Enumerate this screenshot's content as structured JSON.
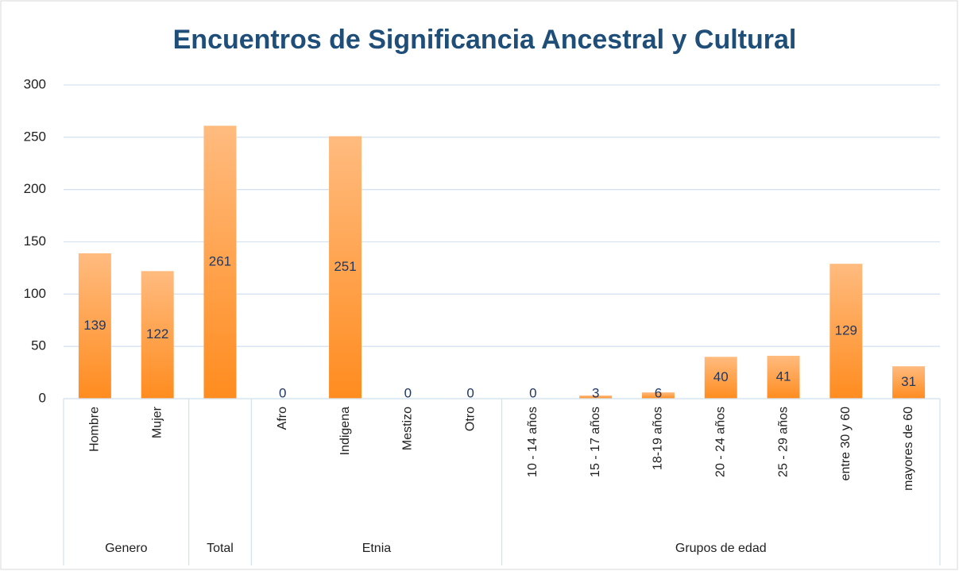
{
  "chart_data": {
    "type": "bar",
    "title": "Encuentros de Significancia Ancestral y Cultural",
    "categories": [
      "Hombre",
      "Mujer",
      null,
      "Afro",
      "Indigena",
      "Mestizo",
      "Otro",
      "10 - 14 años",
      "15 - 17 años",
      "18-19 años",
      "20 - 24 años",
      "25 - 29 años",
      "entre 30 y 60",
      "mayores de 60"
    ],
    "values": [
      139,
      122,
      261,
      0,
      251,
      0,
      0,
      0,
      3,
      6,
      40,
      41,
      129,
      31
    ],
    "groups": [
      {
        "label": "Genero",
        "size": 2
      },
      {
        "label": "Total",
        "size": 1
      },
      {
        "label": "Etnia",
        "size": 4
      },
      {
        "label": "Grupos de edad",
        "size": 7
      }
    ],
    "color": "#ff8c1f",
    "ylim": [
      0,
      300
    ],
    "yticks": [
      0,
      50,
      100,
      150,
      200,
      250,
      300
    ],
    "grid": true
  }
}
